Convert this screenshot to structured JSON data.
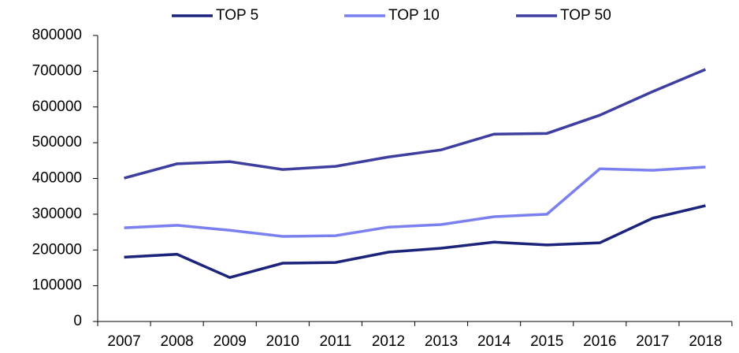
{
  "chart_data": {
    "type": "line",
    "categories": [
      "2007",
      "2008",
      "2009",
      "2010",
      "2011",
      "2012",
      "2013",
      "2014",
      "2015",
      "2016",
      "2017",
      "2018"
    ],
    "series": [
      {
        "name": "TOP 5",
        "color": "#1c237a",
        "values": [
          180000,
          188000,
          123000,
          163000,
          165000,
          194000,
          205000,
          222000,
          214000,
          220000,
          289000,
          324000
        ]
      },
      {
        "name": "TOP 10",
        "color": "#7b80f0",
        "values": [
          262000,
          269000,
          255000,
          238000,
          240000,
          264000,
          271000,
          293000,
          300000,
          427000,
          423000,
          432000
        ]
      },
      {
        "name": "TOP 50",
        "color": "#3e3ea0",
        "values": [
          401000,
          441000,
          447000,
          425000,
          434000,
          460000,
          480000,
          524000,
          526000,
          577000,
          643000,
          705000
        ]
      }
    ],
    "ylim": [
      0,
      800000
    ],
    "yticks": [
      0,
      100000,
      200000,
      300000,
      400000,
      500000,
      600000,
      700000,
      800000
    ],
    "legend": "top"
  }
}
